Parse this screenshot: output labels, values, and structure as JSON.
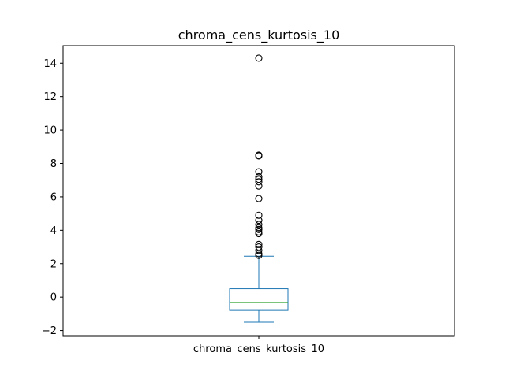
{
  "chart_data": {
    "type": "box",
    "title": "chroma_cens_kurtosis_10",
    "categories": [
      "chroma_cens_kurtosis_10"
    ],
    "xlabel": "",
    "ylabel": "",
    "ylim": [
      -2.35,
      15.05
    ],
    "yticks": [
      -2,
      0,
      2,
      4,
      6,
      8,
      10,
      12,
      14
    ],
    "ytick_labels": [
      "−2",
      "0",
      "2",
      "4",
      "6",
      "8",
      "10",
      "12",
      "14"
    ],
    "grid": false,
    "box": {
      "whisker_low": -1.5,
      "q1": -0.8,
      "median": -0.33,
      "q3": 0.5,
      "whisker_high": 2.45
    },
    "outliers": [
      2.5,
      2.6,
      2.8,
      3.0,
      3.15,
      3.8,
      3.9,
      4.05,
      4.15,
      4.35,
      4.6,
      4.9,
      5.9,
      6.65,
      6.9,
      7.05,
      7.2,
      7.5,
      8.45,
      8.5,
      14.3
    ],
    "colors": {
      "box": "#1f77b4",
      "median": "#2ca02c",
      "outlier": "#000000",
      "axes": "#000000"
    }
  }
}
